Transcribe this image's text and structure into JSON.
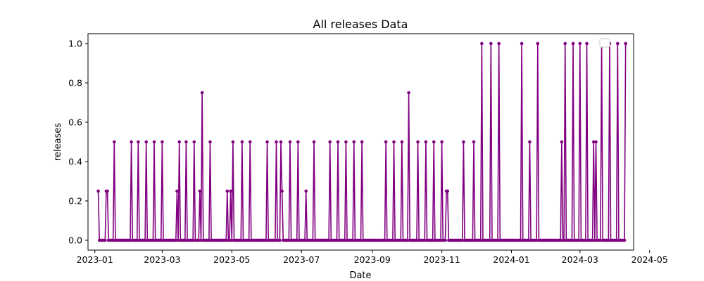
{
  "chart_data": {
    "type": "line",
    "title": "All releases Data",
    "xlabel": "Date",
    "ylabel": "releases",
    "xlim": [
      "2022-12-26",
      "2024-04-17"
    ],
    "ylim": [
      -0.05,
      1.05
    ],
    "x_ticks": [
      "2023-01",
      "2023-03",
      "2023-05",
      "2023-07",
      "2023-09",
      "2023-11",
      "2024-01",
      "2024-03",
      "2024-05"
    ],
    "y_ticks": [
      "0.0",
      "0.2",
      "0.4",
      "0.6",
      "0.8",
      "1.0"
    ],
    "grid": false,
    "legend": "top-right (empty)",
    "series": [
      {
        "color": "#800080",
        "marker": "circle",
        "points": [
          [
            "2023-01-04",
            0.25
          ],
          [
            "2023-01-11",
            0.25
          ],
          [
            "2023-01-12",
            0.25
          ],
          [
            "2023-01-18",
            0.5
          ],
          [
            "2023-02-02",
            0.5
          ],
          [
            "2023-02-08",
            0.5
          ],
          [
            "2023-02-15",
            0.5
          ],
          [
            "2023-02-22",
            0.5
          ],
          [
            "2023-03-01",
            0.5
          ],
          [
            "2023-03-14",
            0.25
          ],
          [
            "2023-03-16",
            0.5
          ],
          [
            "2023-03-22",
            0.5
          ],
          [
            "2023-03-29",
            0.5
          ],
          [
            "2023-04-03",
            0.25
          ],
          [
            "2023-04-05",
            0.75
          ],
          [
            "2023-04-12",
            0.5
          ],
          [
            "2023-04-27",
            0.25
          ],
          [
            "2023-04-30",
            0.25
          ],
          [
            "2023-05-02",
            0.5
          ],
          [
            "2023-05-10",
            0.5
          ],
          [
            "2023-05-17",
            0.5
          ],
          [
            "2023-06-01",
            0.5
          ],
          [
            "2023-06-09",
            0.5
          ],
          [
            "2023-06-13",
            0.5
          ],
          [
            "2023-06-14",
            0.25
          ],
          [
            "2023-06-21",
            0.5
          ],
          [
            "2023-06-28",
            0.5
          ],
          [
            "2023-07-05",
            0.25
          ],
          [
            "2023-07-12",
            0.5
          ],
          [
            "2023-07-26",
            0.5
          ],
          [
            "2023-08-02",
            0.5
          ],
          [
            "2023-08-09",
            0.5
          ],
          [
            "2023-08-16",
            0.5
          ],
          [
            "2023-08-23",
            0.5
          ],
          [
            "2023-09-13",
            0.5
          ],
          [
            "2023-09-20",
            0.5
          ],
          [
            "2023-09-27",
            0.5
          ],
          [
            "2023-10-03",
            0.75
          ],
          [
            "2023-10-11",
            0.5
          ],
          [
            "2023-10-18",
            0.5
          ],
          [
            "2023-10-25",
            0.5
          ],
          [
            "2023-11-01",
            0.5
          ],
          [
            "2023-11-05",
            0.25
          ],
          [
            "2023-11-06",
            0.25
          ],
          [
            "2023-11-20",
            0.5
          ],
          [
            "2023-11-29",
            0.5
          ],
          [
            "2023-12-06",
            1.0
          ],
          [
            "2023-12-14",
            1.0
          ],
          [
            "2023-12-21",
            1.0
          ],
          [
            "2024-01-10",
            1.0
          ],
          [
            "2024-01-17",
            0.5
          ],
          [
            "2024-01-24",
            1.0
          ],
          [
            "2024-02-14",
            0.5
          ],
          [
            "2024-02-17",
            1.0
          ],
          [
            "2024-02-24",
            1.0
          ],
          [
            "2024-03-01",
            1.0
          ],
          [
            "2024-03-07",
            1.0
          ],
          [
            "2024-03-13",
            0.5
          ],
          [
            "2024-03-15",
            0.5
          ],
          [
            "2024-03-20",
            1.0
          ],
          [
            "2024-03-27",
            1.0
          ],
          [
            "2024-04-03",
            1.0
          ],
          [
            "2024-04-10",
            1.0
          ]
        ],
        "baseline_range": [
          "2023-01-04",
          "2024-04-10"
        ],
        "baseline_value": 0
      }
    ]
  }
}
